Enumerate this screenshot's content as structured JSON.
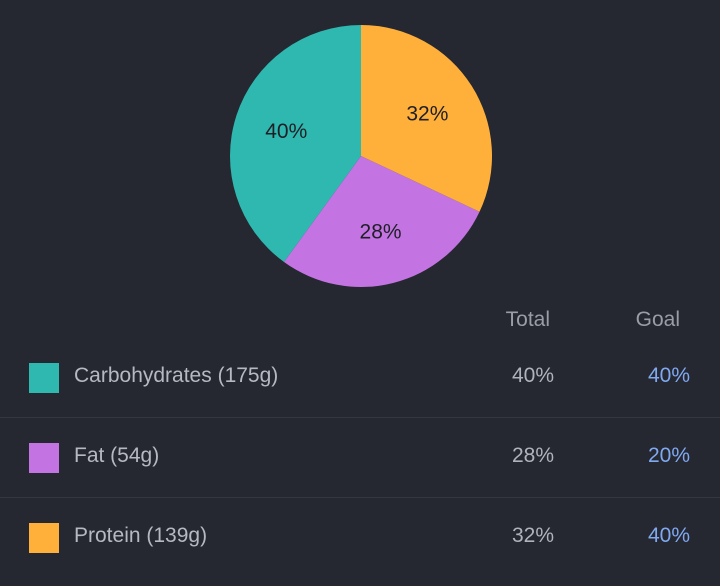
{
  "chart_data": {
    "type": "pie",
    "slices": [
      {
        "label": "40%",
        "value": 40,
        "color": "#2eb8b0"
      },
      {
        "label": "28%",
        "value": 28,
        "color": "#c374e2"
      },
      {
        "label": "32%",
        "value": 32,
        "color": "#ffb03b"
      }
    ],
    "start": "top",
    "direction": "counterclockwise"
  },
  "table": {
    "headers": {
      "total": "Total",
      "goal": "Goal"
    },
    "rows": [
      {
        "name": "Carbohydrates (175g)",
        "total": "40%",
        "goal": "40%",
        "color": "#2eb8b0"
      },
      {
        "name": "Fat (54g)",
        "total": "28%",
        "goal": "20%",
        "color": "#c374e2"
      },
      {
        "name": "Protein (139g)",
        "total": "32%",
        "goal": "40%",
        "color": "#ffb03b"
      }
    ]
  },
  "colors": {
    "background": "#252731",
    "goal_text": "#7fa9f0",
    "slice_label": "#1e1f26"
  }
}
